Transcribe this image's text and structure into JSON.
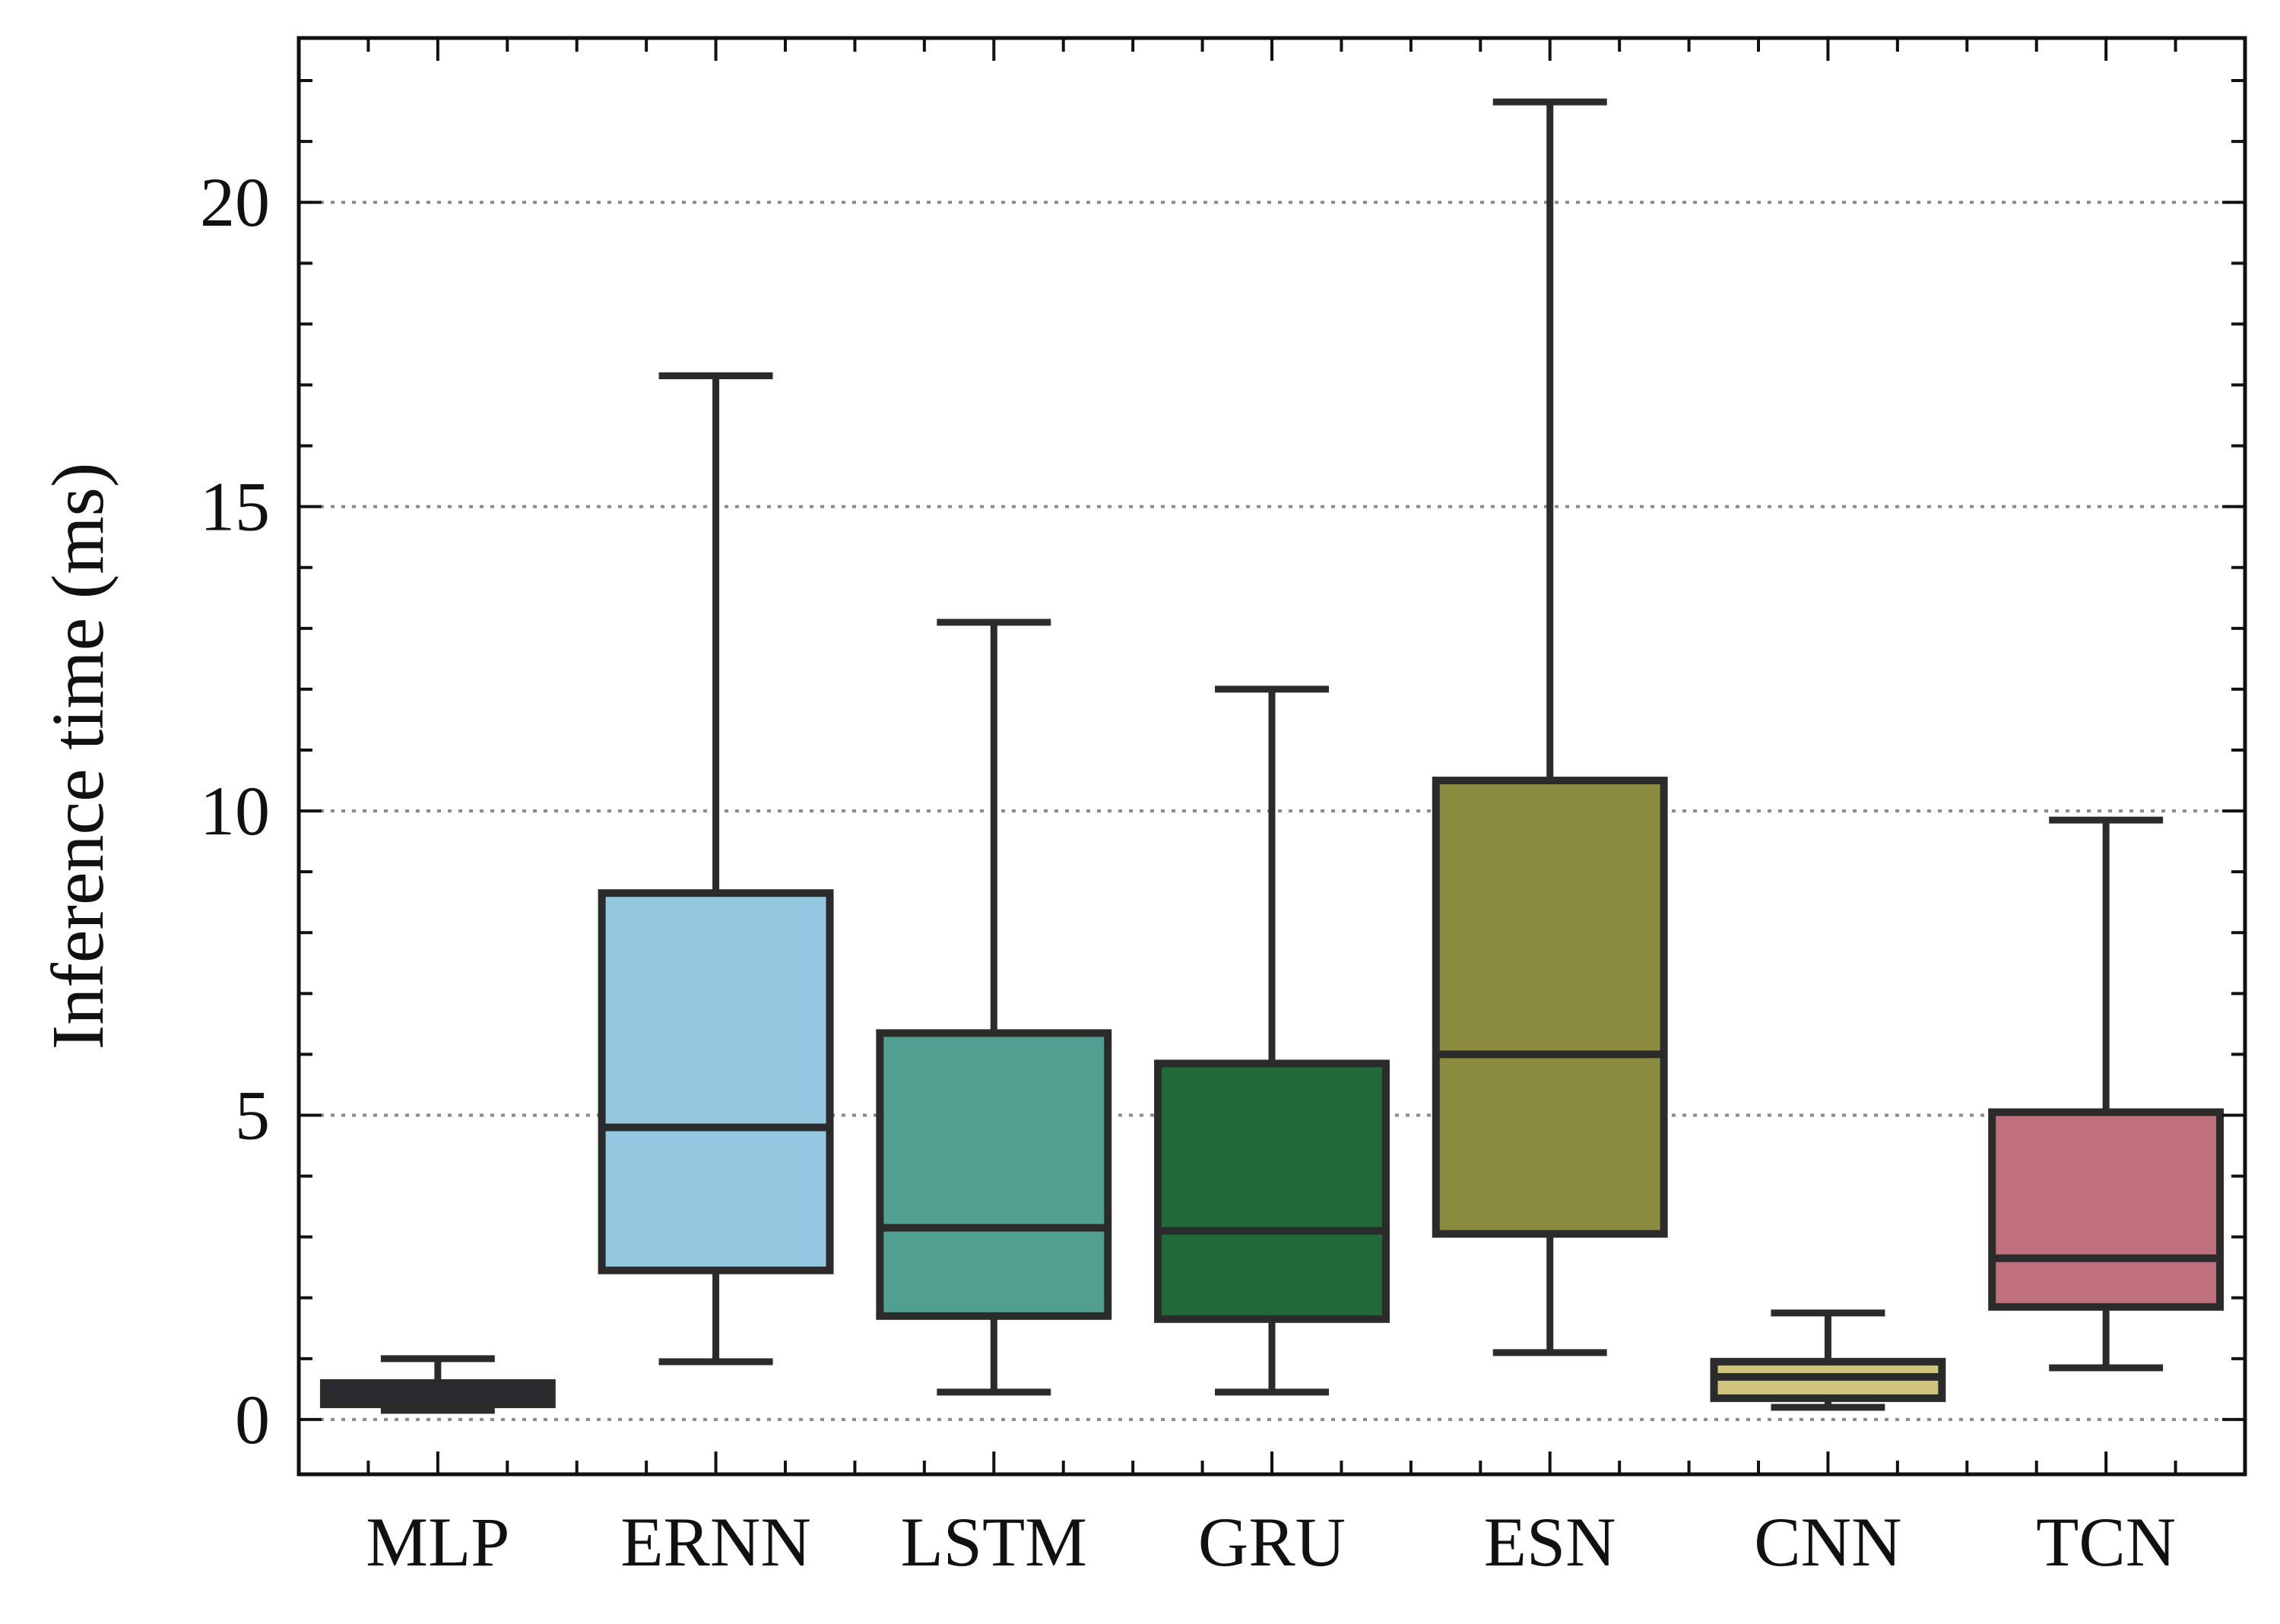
{
  "chart_data": {
    "type": "box",
    "ylabel": "Inference time (ms)",
    "xlabel": "",
    "ylim": [
      -0.9,
      22.7
    ],
    "yticks": [
      0,
      5,
      10,
      15,
      20
    ],
    "ytick_labels": [
      "0",
      "5",
      "10",
      "15",
      "20"
    ],
    "grid": "horizontal dotted at major ticks",
    "categories": [
      "MLP",
      "ERNN",
      "LSTM",
      "GRU",
      "ESN",
      "CNN",
      "TCN"
    ],
    "boxes": [
      {
        "name": "MLP",
        "whisker_low": 0.15,
        "q1": 0.25,
        "median": 0.4,
        "q3": 0.6,
        "whisker_high": 1.0,
        "color": "#2b2b38"
      },
      {
        "name": "ERNN",
        "whisker_low": 0.95,
        "q1": 2.45,
        "median": 4.8,
        "q3": 8.65,
        "whisker_high": 17.15,
        "color": "#94c8e0"
      },
      {
        "name": "LSTM",
        "whisker_low": 0.45,
        "q1": 1.7,
        "median": 3.15,
        "q3": 6.35,
        "whisker_high": 13.1,
        "color": "#519f90"
      },
      {
        "name": "GRU",
        "whisker_low": 0.45,
        "q1": 1.65,
        "median": 3.1,
        "q3": 5.85,
        "whisker_high": 12.0,
        "color": "#1f6a38"
      },
      {
        "name": "ESN",
        "whisker_low": 1.1,
        "q1": 3.05,
        "median": 6.0,
        "q3": 10.5,
        "whisker_high": 21.65,
        "color": "#8b8b40"
      },
      {
        "name": "CNN",
        "whisker_low": 0.2,
        "q1": 0.35,
        "median": 0.7,
        "q3": 0.95,
        "whisker_high": 1.75,
        "color": "#d0c57e"
      },
      {
        "name": "TCN",
        "whisker_low": 0.85,
        "q1": 1.85,
        "median": 2.65,
        "q3": 5.05,
        "whisker_high": 9.85,
        "color": "#c0707d"
      }
    ]
  }
}
